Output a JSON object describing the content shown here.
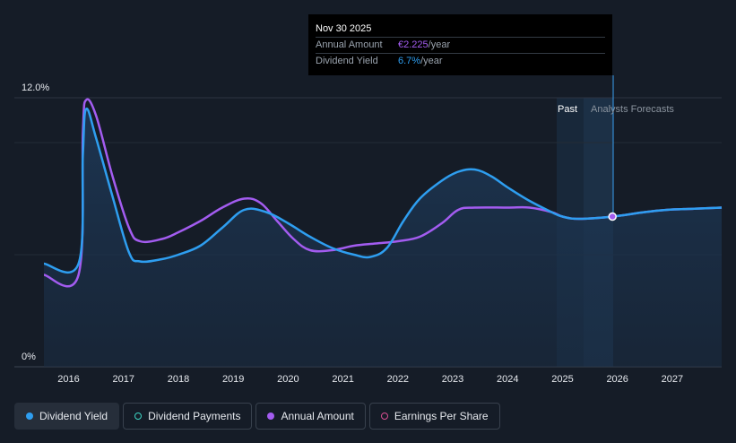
{
  "tooltip": {
    "date": "Nov 30 2025",
    "annual_amount_label": "Annual Amount",
    "annual_amount_value": "€2.225",
    "annual_amount_unit": "/year",
    "dividend_yield_label": "Dividend Yield",
    "dividend_yield_value": "6.7%",
    "dividend_yield_unit": "/year"
  },
  "zones": {
    "past_label": "Past",
    "forecast_label": "Analysts Forecasts"
  },
  "legend": [
    {
      "label": "Dividend Yield",
      "color": "#2e9ef0",
      "filled": true,
      "active": true
    },
    {
      "label": "Dividend Payments",
      "color": "#3dd6c4",
      "filled": false,
      "active": false
    },
    {
      "label": "Annual Amount",
      "color": "#a35cf0",
      "filled": true,
      "active": false
    },
    {
      "label": "Earnings Per Share",
      "color": "#d94f93",
      "filled": false,
      "active": false
    }
  ],
  "chart_data": {
    "type": "line",
    "ylim": [
      0,
      12
    ],
    "y_tick_labels": [
      "12.0%",
      "0%"
    ],
    "xlim": [
      2015.55,
      2027.9
    ],
    "x_ticks": [
      2016,
      2017,
      2018,
      2019,
      2020,
      2021,
      2022,
      2023,
      2024,
      2025,
      2026,
      2027
    ],
    "past_forecast_boundary": 2025.91,
    "marker": {
      "x": 2025.91,
      "y": 6.7
    },
    "series": [
      {
        "name": "Dividend Yield",
        "color": "#2e9ef0",
        "points": [
          [
            2015.55,
            4.6
          ],
          [
            2016.18,
            4.6
          ],
          [
            2016.26,
            9.5
          ],
          [
            2016.32,
            11.5
          ],
          [
            2016.5,
            10.2
          ],
          [
            2016.8,
            7.6
          ],
          [
            2017.1,
            5.1
          ],
          [
            2017.3,
            4.7
          ],
          [
            2017.7,
            4.8
          ],
          [
            2018.0,
            5.0
          ],
          [
            2018.4,
            5.4
          ],
          [
            2018.8,
            6.2
          ],
          [
            2019.2,
            7.0
          ],
          [
            2019.6,
            6.9
          ],
          [
            2020.0,
            6.4
          ],
          [
            2020.4,
            5.8
          ],
          [
            2020.8,
            5.3
          ],
          [
            2021.2,
            5.0
          ],
          [
            2021.5,
            4.9
          ],
          [
            2021.8,
            5.3
          ],
          [
            2022.1,
            6.5
          ],
          [
            2022.4,
            7.5
          ],
          [
            2022.8,
            8.3
          ],
          [
            2023.1,
            8.7
          ],
          [
            2023.4,
            8.8
          ],
          [
            2023.7,
            8.5
          ],
          [
            2024.0,
            8.0
          ],
          [
            2024.4,
            7.4
          ],
          [
            2024.8,
            6.9
          ],
          [
            2025.0,
            6.7
          ],
          [
            2025.3,
            6.6
          ],
          [
            2025.91,
            6.7
          ],
          [
            2026.5,
            6.9
          ],
          [
            2026.9,
            7.0
          ],
          [
            2027.4,
            7.05
          ],
          [
            2027.9,
            7.1
          ]
        ]
      },
      {
        "name": "Annual Amount",
        "color": "#a35cf0",
        "points": [
          [
            2015.55,
            4.1
          ],
          [
            2016.18,
            4.1
          ],
          [
            2016.26,
            10.5
          ],
          [
            2016.32,
            11.9
          ],
          [
            2016.5,
            11.2
          ],
          [
            2016.8,
            8.5
          ],
          [
            2017.1,
            6.2
          ],
          [
            2017.3,
            5.6
          ],
          [
            2017.7,
            5.7
          ],
          [
            2018.0,
            6.0
          ],
          [
            2018.4,
            6.5
          ],
          [
            2018.8,
            7.1
          ],
          [
            2019.2,
            7.5
          ],
          [
            2019.5,
            7.3
          ],
          [
            2019.8,
            6.5
          ],
          [
            2020.1,
            5.7
          ],
          [
            2020.4,
            5.2
          ],
          [
            2020.8,
            5.2
          ],
          [
            2021.2,
            5.4
          ],
          [
            2021.6,
            5.5
          ],
          [
            2022.0,
            5.6
          ],
          [
            2022.4,
            5.8
          ],
          [
            2022.8,
            6.4
          ],
          [
            2023.1,
            7.0
          ],
          [
            2023.4,
            7.1
          ],
          [
            2024.0,
            7.1
          ],
          [
            2024.4,
            7.1
          ],
          [
            2024.8,
            6.9
          ],
          [
            2025.0,
            6.7
          ],
          [
            2025.3,
            6.6
          ],
          [
            2025.91,
            6.7
          ],
          [
            2026.5,
            6.9
          ],
          [
            2026.9,
            7.0
          ],
          [
            2027.4,
            7.05
          ],
          [
            2027.9,
            7.1
          ]
        ]
      }
    ]
  }
}
